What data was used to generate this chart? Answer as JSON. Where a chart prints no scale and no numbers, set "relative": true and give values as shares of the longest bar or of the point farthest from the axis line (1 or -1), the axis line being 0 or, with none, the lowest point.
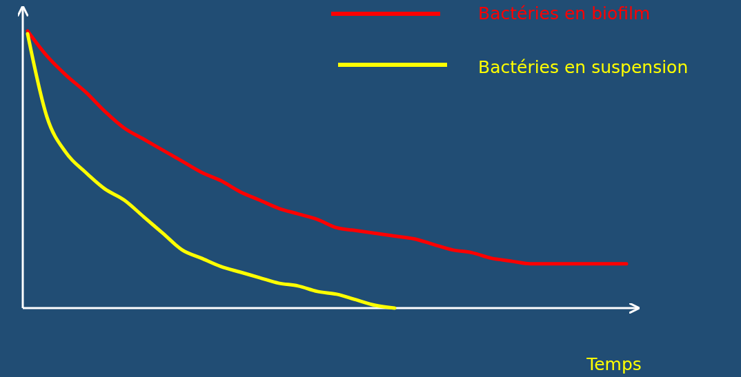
{
  "chart_data": {
    "type": "line",
    "relative": true,
    "xlabel": "Temps",
    "legend": "top right",
    "marker": "none",
    "line_style": "solid",
    "categories": [
      null,
      null,
      null,
      null,
      null,
      null,
      null,
      null,
      null,
      null,
      null,
      null,
      null,
      null,
      null,
      null,
      null,
      null,
      null,
      null,
      null,
      null,
      null,
      null,
      null,
      null,
      null,
      null,
      null,
      null,
      null,
      null
    ],
    "series": [
      {
        "name": "Bactéries en biofilm",
        "color": "#ff0000",
        "values": [
          1.0,
          0.91,
          0.84,
          0.78,
          0.71,
          0.65,
          0.61,
          0.57,
          0.53,
          0.49,
          0.46,
          0.42,
          0.39,
          0.36,
          0.34,
          0.32,
          0.29,
          0.28,
          0.27,
          0.26,
          0.25,
          0.23,
          0.21,
          0.2,
          0.18,
          0.17,
          0.16,
          0.16,
          0.16,
          0.16,
          0.16,
          0.16
        ]
      },
      {
        "name": "Bactéries en suspension",
        "color": "#ffff00",
        "values": [
          0.99,
          0.69,
          0.56,
          0.49,
          0.43,
          0.39,
          0.33,
          0.27,
          0.21,
          0.18,
          0.15,
          0.13,
          0.11,
          0.09,
          0.08,
          0.06,
          0.05,
          0.03,
          0.01,
          0,
          null,
          null,
          null,
          null,
          null,
          null,
          null,
          null,
          null,
          null,
          null,
          null
        ]
      }
    ]
  }
}
